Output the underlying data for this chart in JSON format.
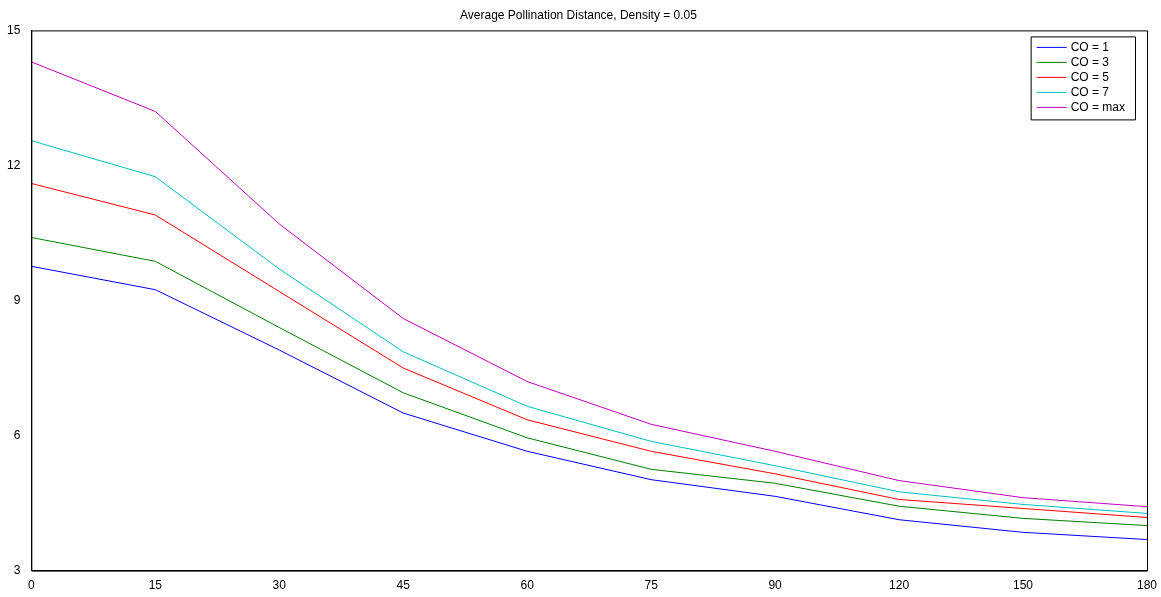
{
  "chart_data": {
    "type": "line",
    "title": "Average Pollination Distance, Density = 0.05",
    "categories": [
      "0",
      "15",
      "30",
      "45",
      "60",
      "75",
      "90",
      "120",
      "150",
      "180"
    ],
    "series": [
      {
        "name": "CO = 1",
        "color": "#0000ff",
        "values": [
          9.76,
          9.24,
          7.9,
          6.5,
          5.65,
          5.02,
          4.65,
          4.13,
          3.85,
          3.69
        ]
      },
      {
        "name": "CO = 3",
        "color": "#008000",
        "values": [
          10.4,
          9.87,
          8.4,
          6.95,
          5.95,
          5.25,
          4.94,
          4.43,
          4.16,
          4.0
        ]
      },
      {
        "name": "CO = 5",
        "color": "#ff0000",
        "values": [
          11.6,
          10.9,
          9.2,
          7.5,
          6.35,
          5.65,
          5.15,
          4.58,
          4.38,
          4.18
        ]
      },
      {
        "name": "CO = 7",
        "color": "#00bfbf",
        "values": [
          12.55,
          11.75,
          9.7,
          7.86,
          6.65,
          5.87,
          5.33,
          4.75,
          4.47,
          4.27
        ]
      },
      {
        "name": "CO = max",
        "color": "#bf00bf",
        "values": [
          14.3,
          13.2,
          10.7,
          8.6,
          7.2,
          6.25,
          5.65,
          5.0,
          4.62,
          4.42
        ]
      }
    ],
    "ylim": [
      3,
      15
    ],
    "yticks": [
      3,
      6,
      9,
      12,
      15
    ],
    "grid": false,
    "legend": "top right",
    "marker": "none",
    "line_style": "solid"
  }
}
